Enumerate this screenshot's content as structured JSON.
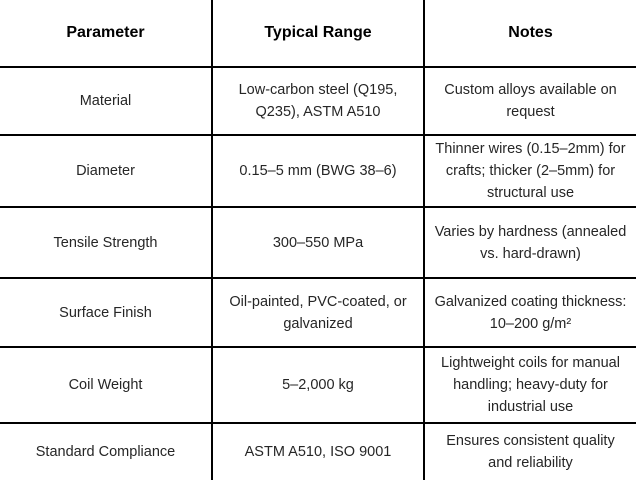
{
  "chart_data": {
    "type": "table",
    "columns": [
      {
        "label": "Parameter"
      },
      {
        "label": "Typical Range"
      },
      {
        "label": "Notes"
      }
    ],
    "rows": [
      {
        "parameter": "Material",
        "range": "Low-carbon steel (Q195,\nQ235), ASTM A510",
        "notes": "Custom alloys available on\nrequest"
      },
      {
        "parameter": "Diameter",
        "range": "0.15–5 mm (BWG 38–6)",
        "notes": "Thinner wires (0.15–2mm) for\ncrafts; thicker (2–5mm) for\nstructural use"
      },
      {
        "parameter": "Tensile Strength",
        "range": "300–550 MPa",
        "notes": "Varies by hardness (annealed\nvs. hard-drawn)"
      },
      {
        "parameter": "Surface Finish",
        "range": "Oil-painted, PVC-coated, or\ngalvanized",
        "notes": "Galvanized coating thickness:\n10–200 g/m²"
      },
      {
        "parameter": "Coil Weight",
        "range": "5–2,000 kg",
        "notes": "Lightweight coils for manual\nhandling; heavy-duty for\nindustrial use"
      },
      {
        "parameter": "Standard Compliance",
        "range": "ASTM A510, ISO 9001",
        "notes": "Ensures consistent quality\nand reliability"
      }
    ]
  },
  "colors": {
    "border": "#000000",
    "header_text": "#000000",
    "body_text": "#262626",
    "background": "#ffffff"
  }
}
